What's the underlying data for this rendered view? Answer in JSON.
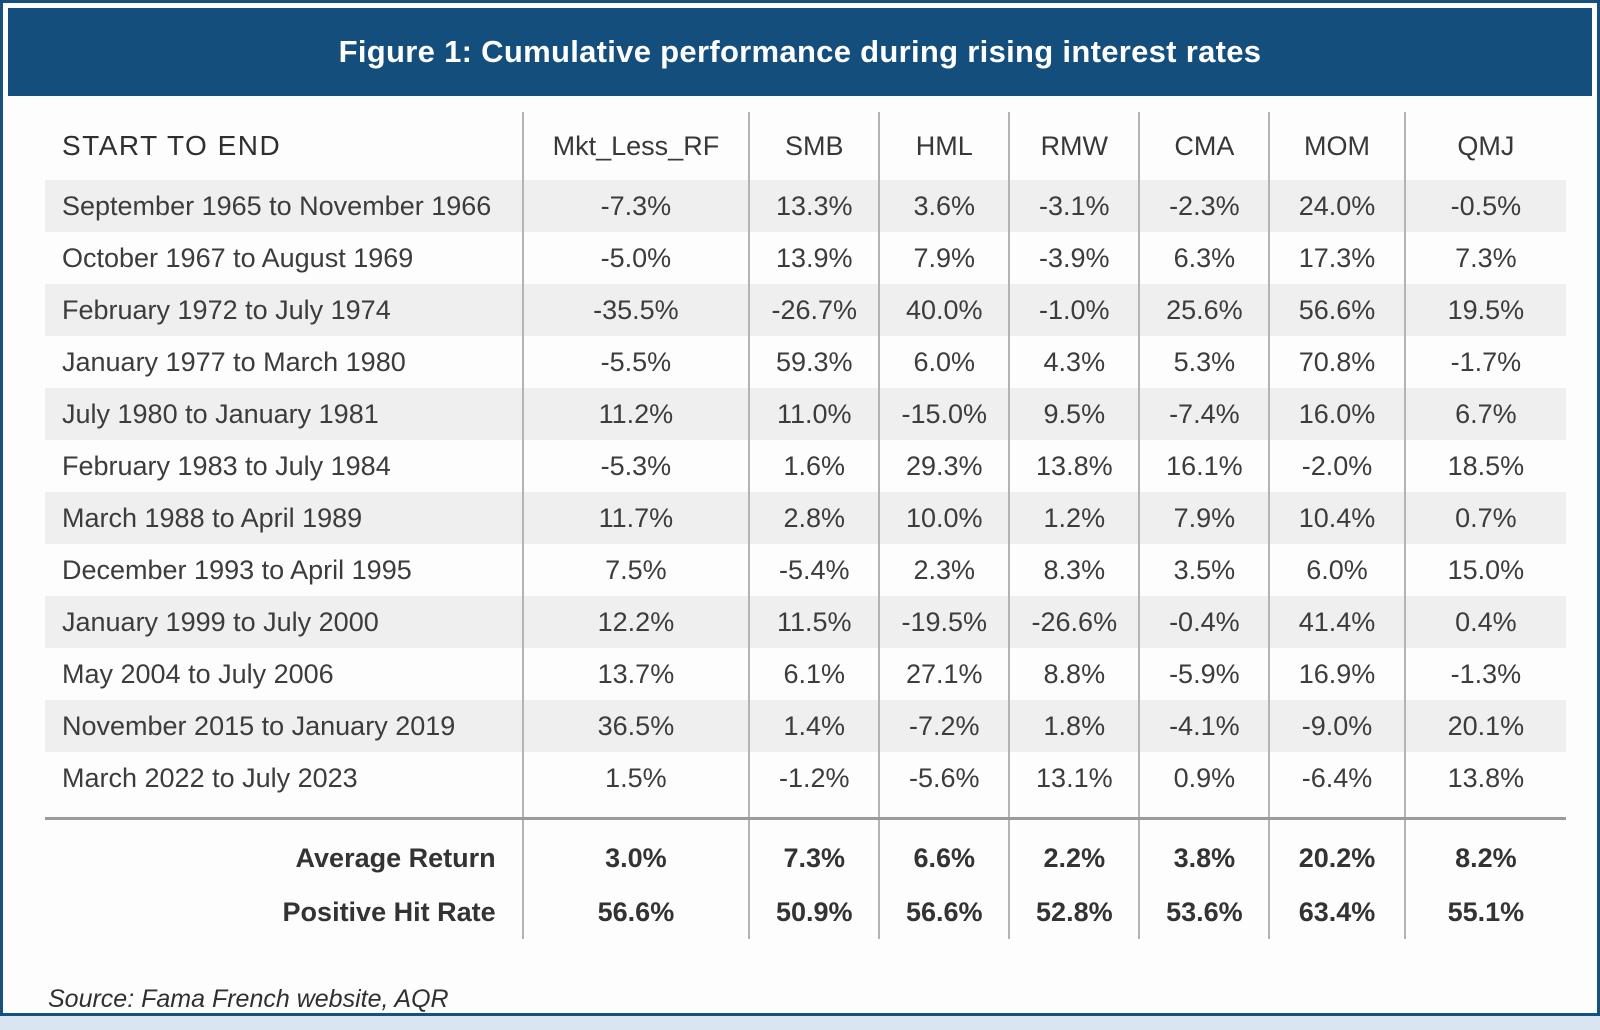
{
  "title": "Figure 1: Cumulative performance during rising interest rates",
  "table": {
    "header": [
      "START TO END",
      "Mkt_Less_RF",
      "SMB",
      "HML",
      "RMW",
      "CMA",
      "MOM",
      "QMJ"
    ],
    "rows": [
      {
        "period": "September 1965 to November 1966",
        "values": [
          "-7.3%",
          "13.3%",
          "3.6%",
          "-3.1%",
          "-2.3%",
          "24.0%",
          "-0.5%"
        ]
      },
      {
        "period": "October 1967 to August 1969",
        "values": [
          "-5.0%",
          "13.9%",
          "7.9%",
          "-3.9%",
          "6.3%",
          "17.3%",
          "7.3%"
        ]
      },
      {
        "period": "February 1972 to July 1974",
        "values": [
          "-35.5%",
          "-26.7%",
          "40.0%",
          "-1.0%",
          "25.6%",
          "56.6%",
          "19.5%"
        ]
      },
      {
        "period": "January 1977 to March 1980",
        "values": [
          "-5.5%",
          "59.3%",
          "6.0%",
          "4.3%",
          "5.3%",
          "70.8%",
          "-1.7%"
        ]
      },
      {
        "period": "July 1980 to January 1981",
        "values": [
          "11.2%",
          "11.0%",
          "-15.0%",
          "9.5%",
          "-7.4%",
          "16.0%",
          "6.7%"
        ]
      },
      {
        "period": "February 1983 to July 1984",
        "values": [
          "-5.3%",
          "1.6%",
          "29.3%",
          "13.8%",
          "16.1%",
          "-2.0%",
          "18.5%"
        ]
      },
      {
        "period": "March 1988 to April 1989",
        "values": [
          "11.7%",
          "2.8%",
          "10.0%",
          "1.2%",
          "7.9%",
          "10.4%",
          "0.7%"
        ]
      },
      {
        "period": "December 1993 to April 1995",
        "values": [
          "7.5%",
          "-5.4%",
          "2.3%",
          "8.3%",
          "3.5%",
          "6.0%",
          "15.0%"
        ]
      },
      {
        "period": "January 1999 to July 2000",
        "values": [
          "12.2%",
          "11.5%",
          "-19.5%",
          "-26.6%",
          "-0.4%",
          "41.4%",
          "0.4%"
        ]
      },
      {
        "period": "May 2004 to July 2006",
        "values": [
          "13.7%",
          "6.1%",
          "27.1%",
          "8.8%",
          "-5.9%",
          "16.9%",
          "-1.3%"
        ]
      },
      {
        "period": "November 2015 to January 2019",
        "values": [
          "36.5%",
          "1.4%",
          "-7.2%",
          "1.8%",
          "-4.1%",
          "-9.0%",
          "20.1%"
        ]
      },
      {
        "period": "March 2022 to July 2023",
        "values": [
          "1.5%",
          "-1.2%",
          "-5.6%",
          "13.1%",
          "0.9%",
          "-6.4%",
          "13.8%"
        ]
      }
    ],
    "footer": [
      {
        "label": "Average Return",
        "values": [
          "3.0%",
          "7.3%",
          "6.6%",
          "2.2%",
          "3.8%",
          "20.2%",
          "8.2%"
        ]
      },
      {
        "label": "Positive Hit Rate",
        "values": [
          "56.6%",
          "50.9%",
          "56.6%",
          "52.8%",
          "53.6%",
          "63.4%",
          "55.1%"
        ]
      }
    ]
  },
  "source": "Source: Fama French website, AQR",
  "colors": {
    "banner_blue": "#134E7C",
    "border_blue": "#15507E",
    "stripe_gray": "#EFEFEF",
    "rule_gray": "#9B9B9B",
    "column_line_gray": "#B3B3B3",
    "text_dark": "#3C3C3C",
    "page_background": "#D9E5F0"
  },
  "chart_data": {
    "type": "table",
    "title": "Figure 1: Cumulative performance during rising interest rates",
    "columns": [
      "START TO END",
      "Mkt_Less_RF",
      "SMB",
      "HML",
      "RMW",
      "CMA",
      "MOM",
      "QMJ"
    ],
    "unit": "%",
    "rows": [
      [
        "September 1965 to November 1966",
        -7.3,
        13.3,
        3.6,
        -3.1,
        -2.3,
        24.0,
        -0.5
      ],
      [
        "October 1967 to August 1969",
        -5.0,
        13.9,
        7.9,
        -3.9,
        6.3,
        17.3,
        7.3
      ],
      [
        "February 1972 to July 1974",
        -35.5,
        -26.7,
        40.0,
        -1.0,
        25.6,
        56.6,
        19.5
      ],
      [
        "January 1977 to March 1980",
        -5.5,
        59.3,
        6.0,
        4.3,
        5.3,
        70.8,
        -1.7
      ],
      [
        "July 1980 to January 1981",
        11.2,
        11.0,
        -15.0,
        9.5,
        -7.4,
        16.0,
        6.7
      ],
      [
        "February 1983 to July 1984",
        -5.3,
        1.6,
        29.3,
        13.8,
        16.1,
        -2.0,
        18.5
      ],
      [
        "March 1988 to April 1989",
        11.7,
        2.8,
        10.0,
        1.2,
        7.9,
        10.4,
        0.7
      ],
      [
        "December 1993 to April 1995",
        7.5,
        -5.4,
        2.3,
        8.3,
        3.5,
        6.0,
        15.0
      ],
      [
        "January 1999 to July 2000",
        12.2,
        11.5,
        -19.5,
        -26.6,
        -0.4,
        41.4,
        0.4
      ],
      [
        "May 2004 to July 2006",
        13.7,
        6.1,
        27.1,
        8.8,
        -5.9,
        16.9,
        -1.3
      ],
      [
        "November 2015 to January 2019",
        36.5,
        1.4,
        -7.2,
        1.8,
        -4.1,
        -9.0,
        20.1
      ],
      [
        "March 2022 to July 2023",
        1.5,
        -1.2,
        -5.6,
        13.1,
        0.9,
        -6.4,
        13.8
      ]
    ],
    "summary_rows": [
      [
        "Average Return",
        3.0,
        7.3,
        6.6,
        2.2,
        3.8,
        20.2,
        8.2
      ],
      [
        "Positive Hit Rate",
        56.6,
        50.9,
        56.6,
        52.8,
        53.6,
        63.4,
        55.1
      ]
    ],
    "source": "Source: Fama French website, AQR"
  }
}
